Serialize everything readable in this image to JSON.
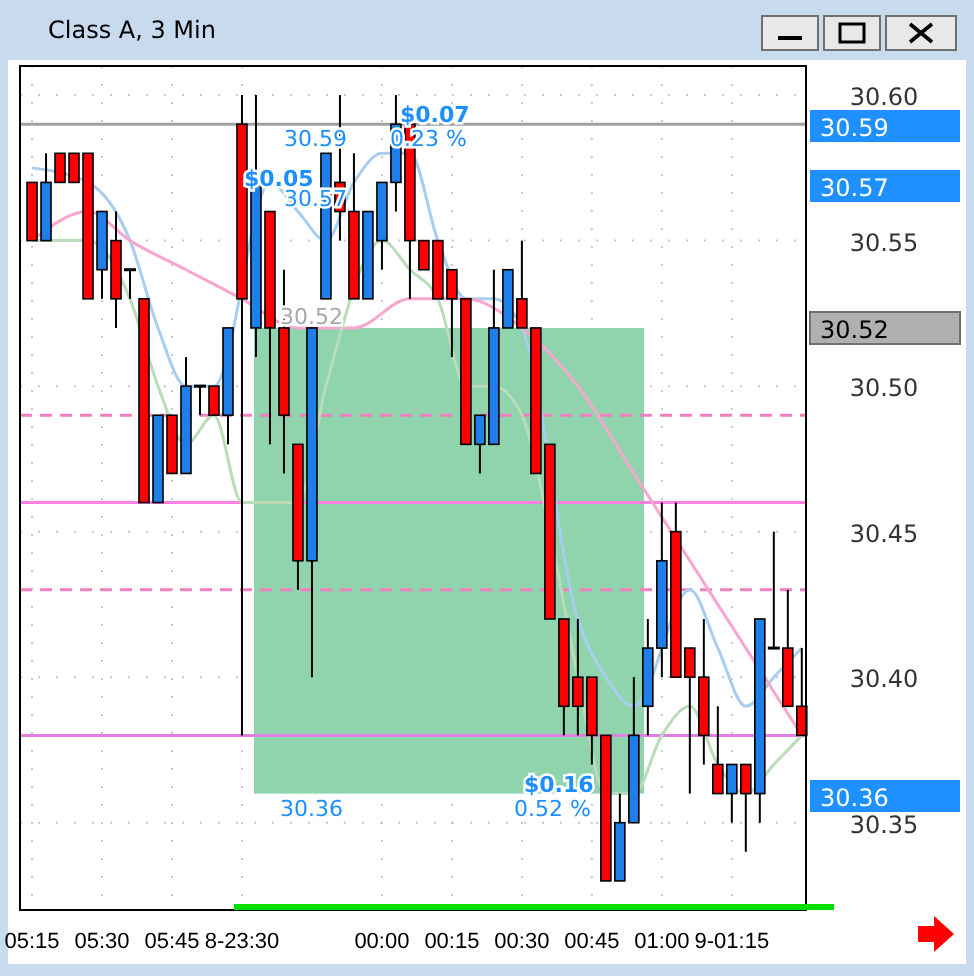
{
  "chart_data": {
    "type": "candlestick",
    "title": "Class A, 3 Min",
    "categories": [
      "05:15",
      null,
      null,
      null,
      null,
      "05:30",
      null,
      null,
      null,
      null,
      "05:45",
      null,
      null,
      null,
      null,
      "8-23:30",
      null,
      null,
      null,
      null,
      null,
      null,
      null,
      null,
      null,
      "00:00",
      null,
      null,
      null,
      null,
      "00:15",
      null,
      null,
      null,
      null,
      "00:30",
      null,
      null,
      null,
      null,
      "00:45",
      null,
      null,
      null,
      null,
      "01:00",
      null,
      null,
      null,
      null,
      "9-01:15",
      null,
      null,
      null,
      null,
      null
    ],
    "ohlc": [
      [
        30.57,
        30.57,
        30.55,
        30.55
      ],
      [
        30.55,
        30.58,
        30.55,
        30.57
      ],
      [
        30.58,
        30.58,
        30.57,
        30.57
      ],
      [
        30.58,
        30.58,
        30.57,
        30.57
      ],
      [
        30.58,
        30.58,
        30.53,
        30.53
      ],
      [
        30.54,
        30.56,
        30.53,
        30.56
      ],
      [
        30.55,
        30.56,
        30.52,
        30.53
      ],
      [
        30.54,
        30.54,
        30.53,
        30.54
      ],
      [
        30.53,
        30.53,
        30.46,
        30.46
      ],
      [
        30.46,
        30.49,
        30.46,
        30.49
      ],
      [
        30.49,
        30.49,
        30.47,
        30.47
      ],
      [
        30.47,
        30.51,
        30.47,
        30.5
      ],
      [
        30.5,
        30.5,
        30.49,
        30.5
      ],
      [
        30.5,
        30.5,
        30.49,
        30.49
      ],
      [
        30.49,
        30.52,
        30.48,
        30.52
      ],
      [
        30.59,
        30.6,
        30.38,
        30.53
      ],
      [
        30.52,
        30.6,
        30.51,
        30.57
      ],
      [
        30.56,
        30.56,
        30.48,
        30.52
      ],
      [
        30.52,
        30.54,
        30.47,
        30.49
      ],
      [
        30.48,
        30.48,
        30.43,
        30.44
      ],
      [
        30.44,
        30.52,
        30.4,
        30.52
      ],
      [
        30.53,
        30.58,
        30.53,
        30.58
      ],
      [
        30.57,
        30.6,
        30.55,
        30.56
      ],
      [
        30.56,
        30.58,
        30.53,
        30.53
      ],
      [
        30.53,
        30.56,
        30.53,
        30.56
      ],
      [
        30.55,
        30.57,
        30.54,
        30.57
      ],
      [
        30.57,
        30.6,
        30.56,
        30.59
      ],
      [
        30.59,
        30.59,
        30.53,
        30.55
      ],
      [
        30.55,
        30.55,
        30.54,
        30.54
      ],
      [
        30.55,
        30.55,
        30.53,
        30.53
      ],
      [
        30.54,
        30.54,
        30.51,
        30.53
      ],
      [
        30.53,
        30.53,
        30.48,
        30.48
      ],
      [
        30.48,
        30.49,
        30.47,
        30.49
      ],
      [
        30.48,
        30.54,
        30.48,
        30.52
      ],
      [
        30.52,
        30.54,
        30.52,
        30.54
      ],
      [
        30.53,
        30.55,
        30.52,
        30.52
      ],
      [
        30.52,
        30.52,
        30.47,
        30.47
      ],
      [
        30.48,
        30.48,
        30.42,
        30.42
      ],
      [
        30.42,
        30.42,
        30.38,
        30.39
      ],
      [
        30.4,
        30.42,
        30.38,
        30.39
      ],
      [
        30.4,
        30.4,
        30.37,
        30.38
      ],
      [
        30.38,
        30.38,
        30.33,
        30.33
      ],
      [
        30.33,
        30.36,
        30.33,
        30.35
      ],
      [
        30.35,
        30.4,
        30.35,
        30.38
      ],
      [
        30.39,
        30.42,
        30.38,
        30.41
      ],
      [
        30.41,
        30.46,
        30.4,
        30.44
      ],
      [
        30.45,
        30.46,
        30.4,
        30.4
      ],
      [
        30.41,
        30.41,
        30.36,
        30.4
      ],
      [
        30.4,
        30.42,
        30.37,
        30.38
      ],
      [
        30.37,
        30.39,
        30.36,
        30.36
      ],
      [
        30.36,
        30.37,
        30.35,
        30.37
      ],
      [
        30.37,
        30.37,
        30.34,
        30.36
      ],
      [
        30.36,
        30.42,
        30.35,
        30.42
      ],
      [
        30.41,
        30.45,
        30.41,
        30.41
      ],
      [
        30.41,
        30.43,
        30.39,
        30.39
      ],
      [
        30.39,
        30.41,
        30.38,
        30.38
      ]
    ],
    "colors": [
      "#ff0000",
      "#1e7fe8",
      "#ff0000",
      "#ff0000",
      "#ff0000",
      "#1e7fe8",
      "#ff0000",
      "#000000",
      "#ff0000",
      "#1e7fe8",
      "#ff0000",
      "#1e7fe8",
      "#000000",
      "#ff0000",
      "#1e7fe8",
      "#ff0000",
      "#1e7fe8",
      "#ff0000",
      "#ff0000",
      "#ff0000",
      "#1e7fe8",
      "#1e7fe8",
      "#ff0000",
      "#ff0000",
      "#1e7fe8",
      "#1e7fe8",
      "#1e7fe8",
      "#ff0000",
      "#ff0000",
      "#ff0000",
      "#ff0000",
      "#ff0000",
      "#1e7fe8",
      "#1e7fe8",
      "#1e7fe8",
      "#ff0000",
      "#ff0000",
      "#ff0000",
      "#ff0000",
      "#ff0000",
      "#ff0000",
      "#ff0000",
      "#1e7fe8",
      "#1e7fe8",
      "#1e7fe8",
      "#1e7fe8",
      "#ff0000",
      "#ff0000",
      "#ff0000",
      "#ff0000",
      "#1e7fe8",
      "#ff0000",
      "#1e7fe8",
      "#000000",
      "#ff0000",
      "#ff0000"
    ],
    "series": [
      {
        "type": "line",
        "color": "#a9cdef",
        "values": [
          30.575,
          null,
          null,
          null,
          30.57,
          null,
          null,
          30.55,
          null,
          30.52,
          null,
          30.5,
          null,
          30.5,
          null,
          null,
          null,
          30.57,
          null,
          30.56,
          null,
          30.55,
          null,
          30.57,
          null,
          30.58,
          null,
          30.58,
          null,
          30.55,
          null,
          30.53,
          null,
          30.53,
          null,
          30.52,
          null,
          null,
          null,
          30.42,
          null,
          30.4,
          null,
          30.39,
          null,
          null,
          null,
          30.43,
          null,
          30.41,
          null,
          30.39,
          null,
          30.4,
          null,
          30.41
        ]
      },
      {
        "type": "line",
        "color": "#f7a6cf",
        "values": [
          30.55,
          null,
          null,
          null,
          30.56,
          null,
          null,
          30.55,
          null,
          null,
          null,
          30.54,
          null,
          null,
          null,
          30.53,
          null,
          null,
          null,
          30.52,
          null,
          null,
          null,
          30.52,
          null,
          null,
          null,
          30.53,
          null,
          null,
          null,
          30.53,
          null,
          null,
          null,
          30.52,
          null,
          null,
          null,
          30.5,
          null,
          null,
          null,
          30.47,
          null,
          null,
          null,
          30.44,
          null,
          null,
          null,
          30.41,
          null,
          null,
          null,
          30.38
        ]
      },
      {
        "type": "line",
        "color": "#b9dcb9",
        "values": [
          30.55,
          null,
          null,
          null,
          30.55,
          null,
          null,
          30.53,
          null,
          30.5,
          null,
          30.48,
          null,
          30.49,
          null,
          30.46,
          null,
          30.46,
          null,
          30.46,
          null,
          30.5,
          null,
          null,
          null,
          30.55,
          null,
          30.54,
          null,
          30.53,
          null,
          30.5,
          null,
          30.5,
          null,
          30.49,
          null,
          30.45,
          null,
          30.4,
          null,
          30.36,
          null,
          30.36,
          null,
          30.38,
          null,
          30.39,
          null,
          30.37,
          null,
          30.36,
          null,
          30.37,
          null,
          30.38
        ]
      }
    ],
    "ylim": [
      30.32,
      30.61
    ],
    "yticks": [
      {
        "value": 30.35,
        "label": "30.35"
      },
      {
        "value": 30.4,
        "label": "30.40"
      },
      {
        "value": 30.45,
        "label": "30.45"
      },
      {
        "value": 30.5,
        "label": "30.50"
      },
      {
        "value": 30.55,
        "label": "30.55"
      },
      {
        "value": 30.6,
        "label": "30.60"
      }
    ],
    "grid": true,
    "ref_lines": [
      {
        "axis": "y",
        "value": 30.59,
        "color": "#a0a0a0",
        "line_style": "solid"
      },
      {
        "axis": "y",
        "value": 30.49,
        "color": "#f080c0",
        "line_style": "dashed"
      },
      {
        "axis": "y",
        "value": 30.46,
        "color": "#ff80e0",
        "line_style": "solid"
      },
      {
        "axis": "y",
        "value": 30.43,
        "color": "#f080c0",
        "line_style": "dashed"
      },
      {
        "axis": "y",
        "value": 30.38,
        "color": "#e080e0",
        "line_style": "solid"
      }
    ],
    "bands": [
      {
        "axis": "y",
        "from": 30.36,
        "to": 30.52,
        "color": "#8fd4ad"
      }
    ],
    "annotations": [
      "$0.05",
      "30.59",
      "30.57",
      "$0.07",
      "0.23 %",
      "30.52",
      "30.36",
      "$0.16",
      "0.52 %",
      "30.59",
      "30.57",
      "30.52",
      "30.36"
    ]
  }
}
